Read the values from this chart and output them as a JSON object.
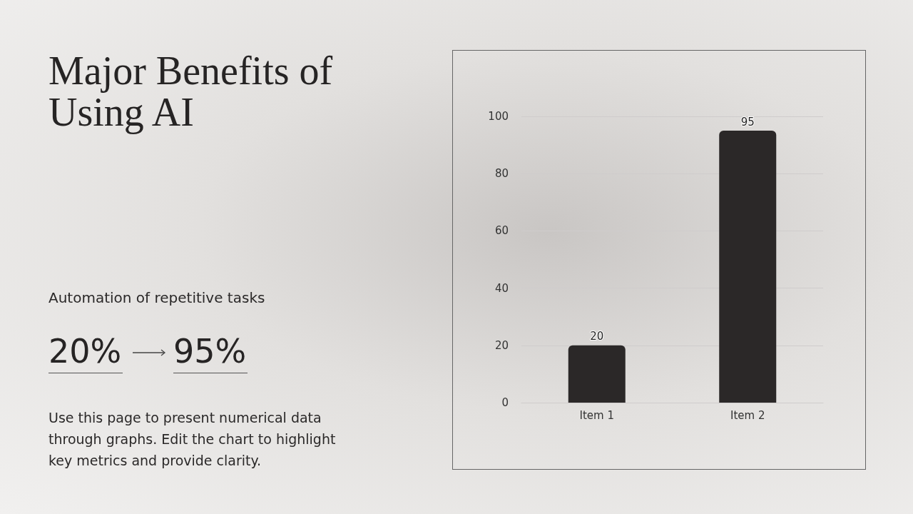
{
  "chart_data": {
    "type": "bar",
    "title": "Major Benefits of Using AI",
    "annotations": [
      "Automation of repetitive tasks",
      "20%",
      "95%",
      "Use this page to present numerical data through graphs. Edit the chart to highlight key metrics and provide clarity."
    ],
    "categories": [
      "Item 1",
      "Item 2"
    ],
    "values": [
      20,
      95
    ],
    "color": "#2b2828",
    "ylim": [
      0,
      100
    ],
    "yticks": [
      0,
      20,
      40,
      60,
      80,
      100
    ],
    "grid": "y",
    "data_labels": true
  }
}
